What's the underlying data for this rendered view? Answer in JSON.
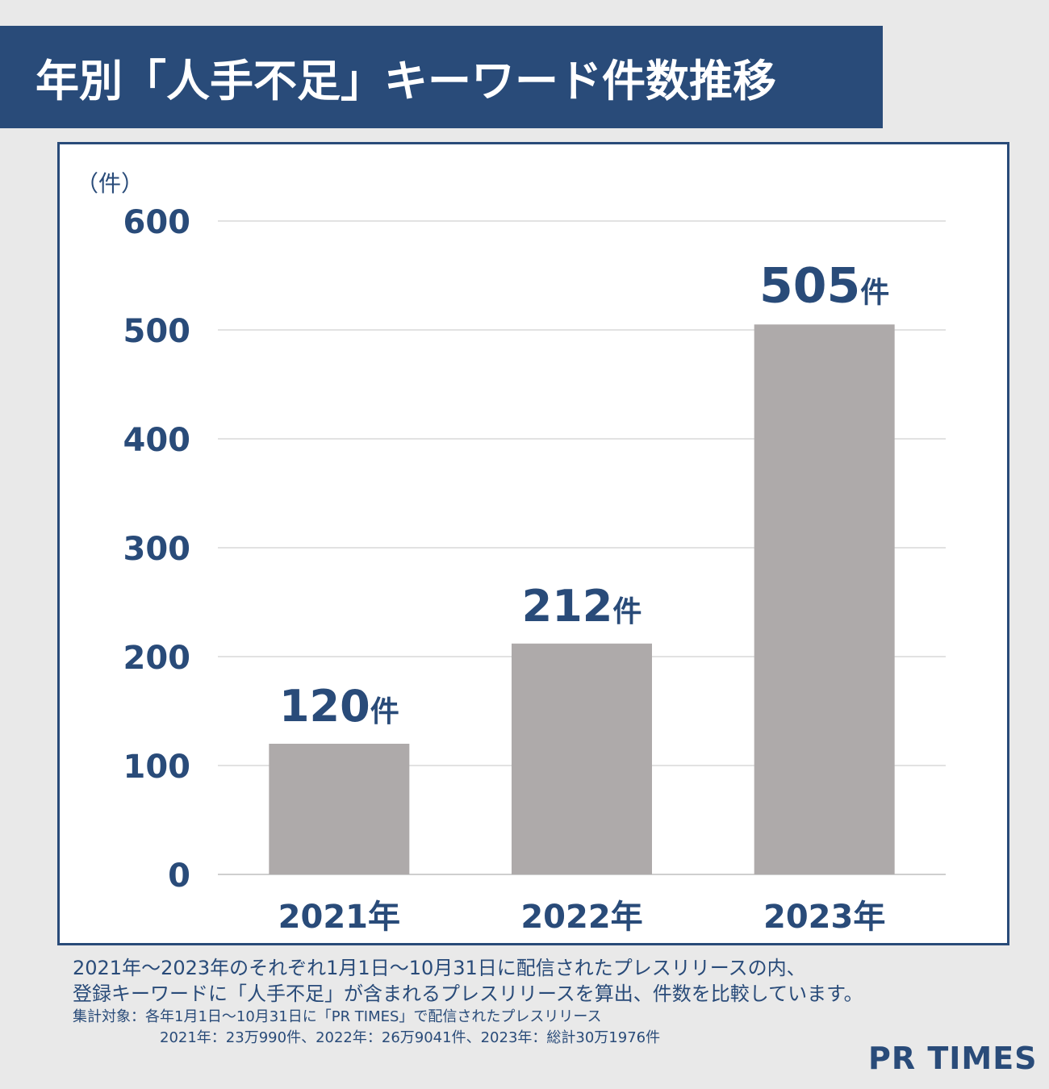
{
  "title": "年別「人手不足」キーワード件数推移",
  "chart_data": {
    "type": "bar",
    "unit_label": "（件）",
    "categories": [
      "2021年",
      "2022年",
      "2023年"
    ],
    "values": [
      120,
      212,
      505
    ],
    "data_labels": [
      {
        "number": "120",
        "suffix": "件"
      },
      {
        "number": "212",
        "suffix": "件"
      },
      {
        "number": "505",
        "suffix": "件"
      }
    ],
    "yticks": [
      "0",
      "100",
      "200",
      "300",
      "400",
      "500",
      "600"
    ],
    "ylim": [
      0,
      600
    ],
    "grid": true,
    "colors": {
      "bar": "#aeaaaa",
      "text": "#294b79",
      "grid": "#d9d9d9"
    }
  },
  "notes": {
    "line1": "2021年～2023年のそれぞれ1月1日～10月31日に配信されたプレスリリースの内、",
    "line2": "登録キーワードに「人手不足」が含まれるプレスリリースを算出、件数を比較しています。",
    "line3": "集計対象：各年1月1日～10月31日に「PR TIMES」で配信されたプレスリリース",
    "line4": "2021年：23万990件、2022年：26万9041件、2023年：総計30万1976件"
  },
  "logo": "PR TIMES"
}
